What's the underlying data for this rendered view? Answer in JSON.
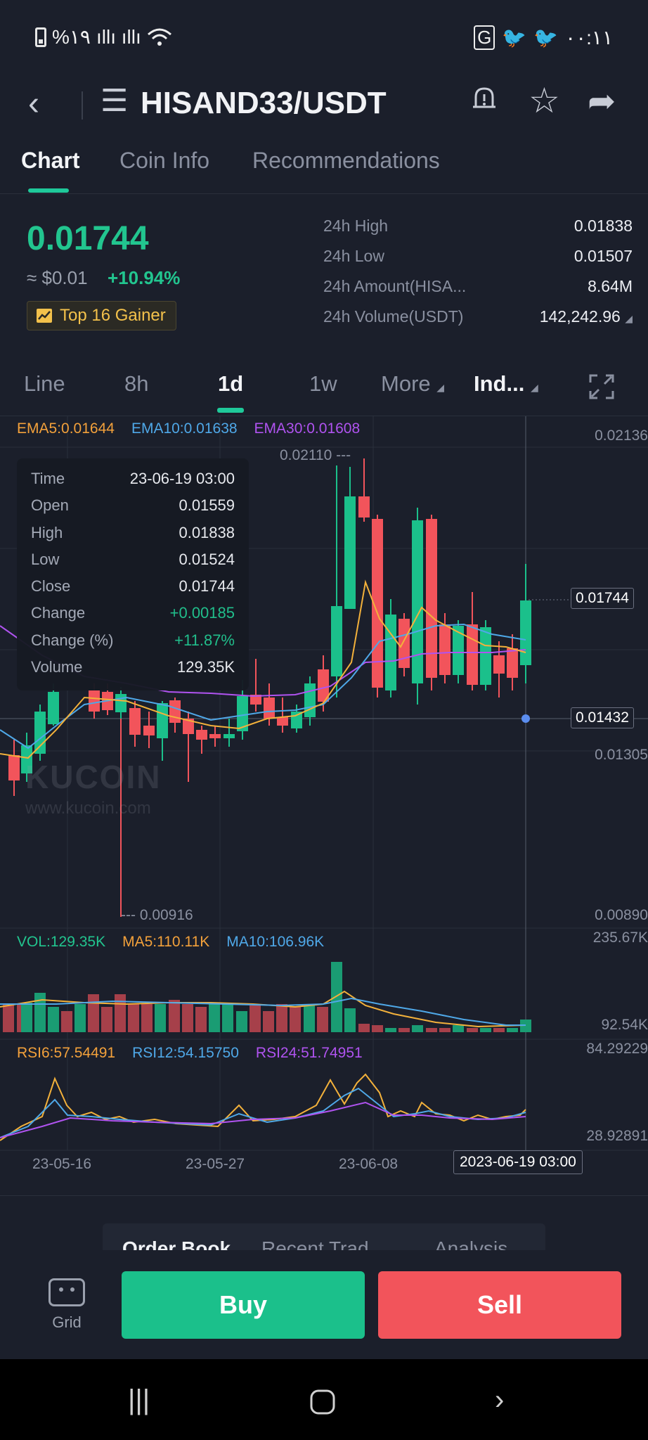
{
  "status_bar": {
    "battery": "%۱۹",
    "time": "۰۰:۱۱"
  },
  "header": {
    "pair": "HISAND33/USDT",
    "icons": [
      "back-icon",
      "menu-icon",
      "alert-bell-icon",
      "star-icon",
      "share-icon"
    ]
  },
  "tabs": [
    "Chart",
    "Coin Info",
    "Recommendations"
  ],
  "price": {
    "last": "0.01744",
    "fiat": "≈ $0.01",
    "change_pct": "+10.94%",
    "badge": "Top 16 Gainer",
    "color_up": "#22c58f",
    "color_down": "#f2545b"
  },
  "stats": [
    {
      "label": "24h High",
      "value": "0.01838"
    },
    {
      "label": "24h Low",
      "value": "0.01507"
    },
    {
      "label": "24h Amount(HISA...",
      "value": "8.64M"
    },
    {
      "label": "24h Volume(USDT)",
      "value": "142,242.96"
    }
  ],
  "intervals": [
    "Line",
    "8h",
    "1d",
    "1w",
    "More",
    "Ind..."
  ],
  "indicators": {
    "ema5": "EMA5:0.01644",
    "ema10": "EMA10:0.01638",
    "ema30": "EMA30:0.01608",
    "vol": "VOL:129.35K",
    "ma5": "MA5:110.11K",
    "ma10": "MA10:106.96K",
    "rsi6": "RSI6:57.54491",
    "rsi12": "RSI12:54.15750",
    "rsi24": "RSI24:51.74951"
  },
  "axis": {
    "price_top": "0.02136",
    "price_last": "0.01744",
    "price_cursor": "0.01432",
    "price_mid": "0.01305",
    "price_bottom": "0.00890",
    "vol_top": "235.67K",
    "vol_bottom": "92.54K",
    "rsi_top": "84.29229",
    "rsi_bottom": "28.92891",
    "high_marker": "0.02110 ---",
    "low_marker": "--- 0.00916",
    "dates": [
      "23-05-16",
      "23-05-27",
      "23-06-08"
    ],
    "active_date": "2023-06-19 03:00"
  },
  "tooltip": [
    {
      "k": "Time",
      "v": "23-06-19 03:00"
    },
    {
      "k": "Open",
      "v": "0.01559"
    },
    {
      "k": "High",
      "v": "0.01838"
    },
    {
      "k": "Low",
      "v": "0.01524"
    },
    {
      "k": "Close",
      "v": "0.01744"
    },
    {
      "k": "Change",
      "v": "+0.00185"
    },
    {
      "k": "Change (%)",
      "v": "+11.87%"
    },
    {
      "k": "Volume",
      "v": "129.35K"
    }
  ],
  "watermark": {
    "logo": "KUCOIN",
    "url": "www.kucoin.com"
  },
  "sub_tabs": [
    "Order Book",
    "Recent Trad",
    "Analysis"
  ],
  "actions": {
    "grid": "Grid",
    "buy": "Buy",
    "sell": "Sell"
  }
}
